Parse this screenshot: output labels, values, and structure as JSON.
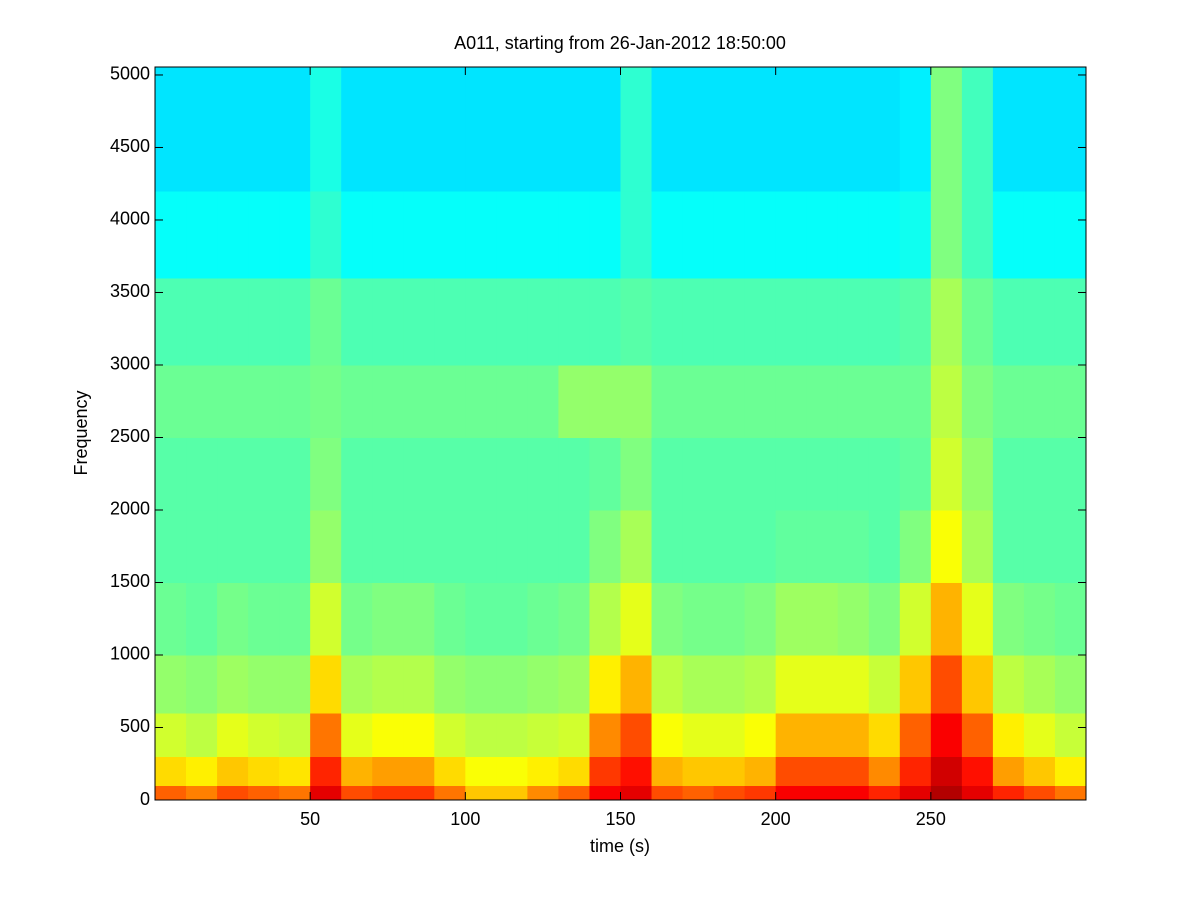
{
  "chart_data": {
    "type": "spectrogram",
    "title": "A011, starting from 26-Jan-2012 18:50:00",
    "x_label": "time (s)",
    "y_label": "Frequency",
    "colormap": "jet",
    "zlim": [
      0,
      1
    ],
    "xlim": [
      0,
      300
    ],
    "ylim": [
      0,
      5055
    ],
    "xticks": [
      50,
      100,
      150,
      200,
      250
    ],
    "yticks": [
      0,
      500,
      1000,
      1500,
      2000,
      2500,
      3000,
      3500,
      4000,
      4500,
      5000
    ],
    "xbins": [
      0,
      10,
      20,
      30,
      40,
      50,
      60,
      70,
      80,
      90,
      100,
      110,
      120,
      130,
      140,
      150,
      160,
      170,
      180,
      190,
      200,
      210,
      220,
      230,
      240,
      250,
      260,
      270,
      280,
      290,
      300
    ],
    "ybins": [
      0,
      100,
      300,
      600,
      1000,
      1500,
      2000,
      2500,
      3000,
      3600,
      4200,
      5055
    ],
    "z": [
      [
        0.78,
        0.75,
        0.8,
        0.78,
        0.76,
        0.9,
        0.8,
        0.82,
        0.82,
        0.76,
        0.68,
        0.68,
        0.74,
        0.78,
        0.88,
        0.9,
        0.8,
        0.78,
        0.8,
        0.82,
        0.88,
        0.88,
        0.88,
        0.84,
        0.9,
        0.95,
        0.9,
        0.84,
        0.8,
        0.76
      ],
      [
        0.66,
        0.64,
        0.68,
        0.66,
        0.65,
        0.84,
        0.7,
        0.72,
        0.72,
        0.66,
        0.62,
        0.62,
        0.64,
        0.66,
        0.82,
        0.86,
        0.7,
        0.68,
        0.68,
        0.7,
        0.8,
        0.8,
        0.8,
        0.74,
        0.84,
        0.92,
        0.86,
        0.72,
        0.68,
        0.64
      ],
      [
        0.58,
        0.56,
        0.6,
        0.58,
        0.57,
        0.76,
        0.6,
        0.62,
        0.62,
        0.58,
        0.56,
        0.56,
        0.57,
        0.58,
        0.74,
        0.8,
        0.62,
        0.6,
        0.6,
        0.62,
        0.7,
        0.7,
        0.7,
        0.66,
        0.78,
        0.88,
        0.78,
        0.64,
        0.6,
        0.57
      ],
      [
        0.52,
        0.51,
        0.53,
        0.52,
        0.52,
        0.66,
        0.54,
        0.55,
        0.55,
        0.52,
        0.51,
        0.51,
        0.52,
        0.53,
        0.64,
        0.7,
        0.56,
        0.54,
        0.54,
        0.55,
        0.6,
        0.6,
        0.6,
        0.57,
        0.68,
        0.8,
        0.68,
        0.56,
        0.54,
        0.52
      ],
      [
        0.48,
        0.47,
        0.49,
        0.48,
        0.48,
        0.58,
        0.49,
        0.5,
        0.5,
        0.48,
        0.47,
        0.47,
        0.48,
        0.49,
        0.55,
        0.6,
        0.5,
        0.49,
        0.49,
        0.5,
        0.53,
        0.53,
        0.52,
        0.5,
        0.58,
        0.7,
        0.6,
        0.5,
        0.49,
        0.48
      ],
      [
        0.46,
        0.46,
        0.46,
        0.46,
        0.46,
        0.52,
        0.46,
        0.46,
        0.46,
        0.46,
        0.46,
        0.46,
        0.46,
        0.46,
        0.5,
        0.54,
        0.46,
        0.46,
        0.46,
        0.46,
        0.47,
        0.47,
        0.47,
        0.46,
        0.5,
        0.62,
        0.54,
        0.46,
        0.46,
        0.46
      ],
      [
        0.46,
        0.46,
        0.46,
        0.46,
        0.46,
        0.5,
        0.46,
        0.46,
        0.46,
        0.46,
        0.46,
        0.46,
        0.46,
        0.46,
        0.47,
        0.5,
        0.46,
        0.46,
        0.46,
        0.46,
        0.46,
        0.46,
        0.46,
        0.46,
        0.47,
        0.58,
        0.52,
        0.46,
        0.46,
        0.46
      ],
      [
        0.48,
        0.48,
        0.48,
        0.48,
        0.48,
        0.49,
        0.48,
        0.48,
        0.48,
        0.48,
        0.48,
        0.48,
        0.48,
        0.52,
        0.52,
        0.52,
        0.48,
        0.48,
        0.48,
        0.48,
        0.48,
        0.48,
        0.48,
        0.48,
        0.48,
        0.56,
        0.5,
        0.48,
        0.48,
        0.48
      ],
      [
        0.45,
        0.45,
        0.45,
        0.45,
        0.45,
        0.48,
        0.45,
        0.45,
        0.45,
        0.45,
        0.45,
        0.45,
        0.45,
        0.45,
        0.45,
        0.46,
        0.45,
        0.45,
        0.45,
        0.45,
        0.45,
        0.45,
        0.45,
        0.45,
        0.46,
        0.54,
        0.48,
        0.45,
        0.45,
        0.45
      ],
      [
        0.38,
        0.38,
        0.38,
        0.38,
        0.38,
        0.42,
        0.38,
        0.38,
        0.38,
        0.38,
        0.38,
        0.38,
        0.38,
        0.38,
        0.38,
        0.42,
        0.38,
        0.38,
        0.38,
        0.38,
        0.38,
        0.38,
        0.38,
        0.38,
        0.39,
        0.5,
        0.44,
        0.38,
        0.38,
        0.38
      ],
      [
        0.35,
        0.35,
        0.35,
        0.35,
        0.35,
        0.4,
        0.35,
        0.35,
        0.35,
        0.35,
        0.35,
        0.35,
        0.35,
        0.35,
        0.35,
        0.42,
        0.35,
        0.35,
        0.35,
        0.35,
        0.35,
        0.35,
        0.35,
        0.35,
        0.36,
        0.5,
        0.44,
        0.35,
        0.35,
        0.35
      ]
    ]
  }
}
